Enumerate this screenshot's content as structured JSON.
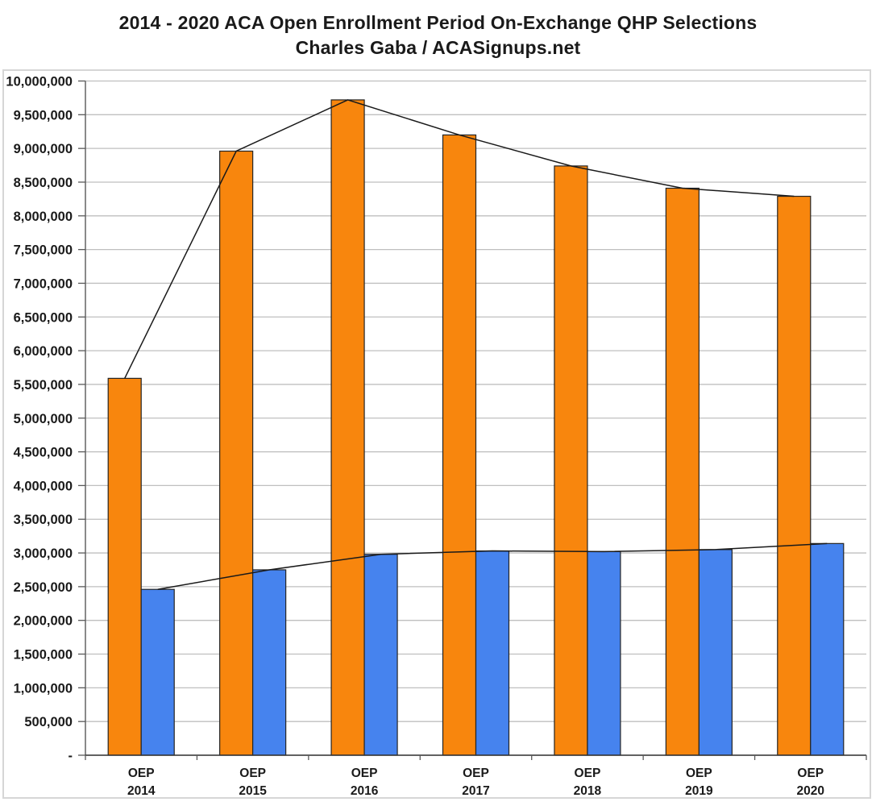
{
  "chart_data": {
    "type": "bar",
    "title": "2014 - 2020 ACA Open Enrollment Period On-Exchange QHP Selections",
    "subtitle": "Charles Gaba / ACASignups.net",
    "categories": [
      "OEP 2014",
      "OEP 2015",
      "OEP 2016",
      "OEP 2017",
      "OEP 2018",
      "OEP 2019",
      "OEP 2020"
    ],
    "series": [
      {
        "name": "orange",
        "color": "#f8860d",
        "values": [
          5590000,
          8960000,
          9720000,
          9200000,
          8740000,
          8410000,
          8290000
        ]
      },
      {
        "name": "blue",
        "color": "#4683ee",
        "values": [
          2460000,
          2750000,
          2980000,
          3030000,
          3020000,
          3050000,
          3140000
        ]
      }
    ],
    "trend_lines": [
      {
        "name": "orange-trend",
        "follows_series": 0,
        "color": "#1a1a1a"
      },
      {
        "name": "blue-trend",
        "follows_series": 1,
        "color": "#1a1a1a"
      }
    ],
    "xlabel": "",
    "ylabel": "",
    "ylim": [
      0,
      10000000
    ],
    "y_tick_step": 500000,
    "y_tick_labels": [
      "10,000,000",
      "9,500,000",
      "9,000,000",
      "8,500,000",
      "8,000,000",
      "7,500,000",
      "7,000,000",
      "6,500,000",
      "6,000,000",
      "5,500,000",
      "5,000,000",
      "4,500,000",
      "4,000,000",
      "3,500,000",
      "3,000,000",
      "2,500,000",
      "2,000,000",
      "1,500,000",
      "1,000,000",
      "500,000",
      "-"
    ],
    "grid": true,
    "legend": "none",
    "colors": {
      "bar_outline": "#242424",
      "gridline": "#bfbfbf",
      "axis": "#595959",
      "baseline": "#333333",
      "frame_border": "#d6d6d6",
      "text": "#1a1a1a"
    }
  }
}
